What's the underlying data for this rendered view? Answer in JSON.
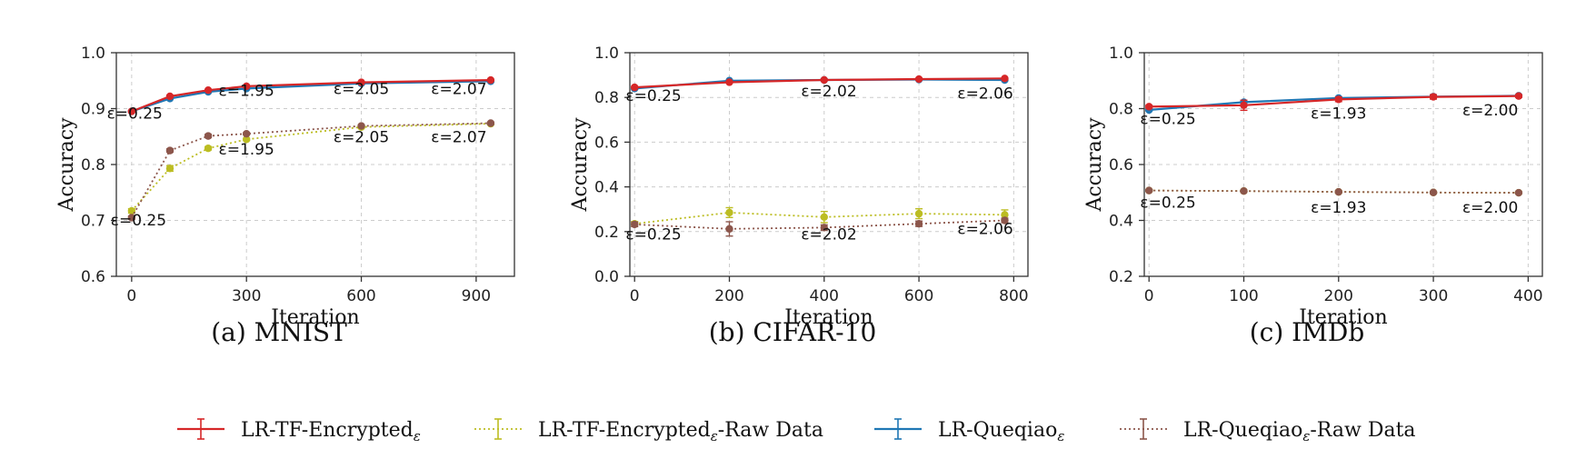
{
  "legend": {
    "position": "bottom",
    "entries": [
      {
        "name": "LR-TF-Encrypted",
        "subscript": "ε",
        "suffix": "",
        "color": "#d62728",
        "dash": "solid"
      },
      {
        "name": "LR-TF-Encrypted",
        "subscript": "ε",
        "suffix": "-Raw Data",
        "color": "#bcbd22",
        "dash": "dotted"
      },
      {
        "name": "LR-Queqiao",
        "subscript": "ε",
        "suffix": "",
        "color": "#1f77b4",
        "dash": "solid"
      },
      {
        "name": "LR-Queqiao",
        "subscript": "ε",
        "suffix": "-Raw Data",
        "color": "#8c564b",
        "dash": "dotted"
      }
    ]
  },
  "chart_data": [
    {
      "type": "line",
      "caption": "(a) MNIST",
      "xlabel": "Iteration",
      "ylabel": "Accuracy",
      "xlim": [
        -40,
        1000
      ],
      "ylim": [
        0.6,
        1.0
      ],
      "xticks": [
        0,
        300,
        600,
        900
      ],
      "yticks": [
        0.6,
        0.7,
        0.8,
        0.9,
        1.0
      ],
      "ytick_labels": [
        "0.6",
        "0.7",
        "0.8",
        "0.9",
        "1.0"
      ],
      "grid": true,
      "series": [
        {
          "name": "LR-TF-Encrypted_ε",
          "color": "#d62728",
          "dash": "solid",
          "x": [
            0,
            100,
            200,
            300,
            600,
            938
          ],
          "y": [
            0.895,
            0.922,
            0.933,
            0.94,
            0.947,
            0.951
          ],
          "err": [
            0.001,
            0.002,
            0.001,
            0.001,
            0.001,
            0.001
          ]
        },
        {
          "name": "LR-TF-Encrypted_ε-Raw Data",
          "color": "#bcbd22",
          "dash": "dotted",
          "x": [
            0,
            100,
            200,
            300,
            600,
            938
          ],
          "y": [
            0.717,
            0.793,
            0.829,
            0.845,
            0.867,
            0.873
          ],
          "err": [
            0.004,
            0.005,
            0.003,
            0.002,
            0.002,
            0.002
          ]
        },
        {
          "name": "LR-Queqiao_ε",
          "color": "#1f77b4",
          "dash": "solid",
          "x": [
            0,
            100,
            200,
            300,
            600,
            938
          ],
          "y": [
            0.895,
            0.918,
            0.93,
            0.936,
            0.945,
            0.949
          ],
          "err": [
            0.001,
            0.001,
            0.001,
            0.001,
            0.001,
            0.001
          ]
        },
        {
          "name": "LR-Queqiao_ε-Raw Data",
          "color": "#8c564b",
          "dash": "dotted",
          "x": [
            0,
            100,
            200,
            300,
            600,
            938
          ],
          "y": [
            0.705,
            0.825,
            0.851,
            0.855,
            0.869,
            0.874
          ],
          "err": [
            0.003,
            0.003,
            0.003,
            0.002,
            0.002,
            0.002
          ]
        }
      ],
      "annotations": [
        {
          "text": "ε=0.25",
          "x": 8,
          "y": 0.882
        },
        {
          "text": "ε=1.95",
          "x": 300,
          "y": 0.923
        },
        {
          "text": "ε=2.05",
          "x": 600,
          "y": 0.926
        },
        {
          "text": "ε=2.07",
          "x": 855,
          "y": 0.926
        },
        {
          "text": "ε=0.25",
          "x": 18,
          "y": 0.691
        },
        {
          "text": "ε=1.95",
          "x": 300,
          "y": 0.818
        },
        {
          "text": "ε=2.05",
          "x": 600,
          "y": 0.84
        },
        {
          "text": "ε=2.07",
          "x": 855,
          "y": 0.84
        }
      ]
    },
    {
      "type": "line",
      "caption": "(b) CIFAR-10",
      "xlabel": "Iteration",
      "ylabel": "Accuracy",
      "xlim": [
        -10,
        830
      ],
      "ylim": [
        0.0,
        1.0
      ],
      "xticks": [
        0,
        200,
        400,
        600,
        800
      ],
      "yticks": [
        0.0,
        0.2,
        0.4,
        0.6,
        0.8,
        1.0
      ],
      "ytick_labels": [
        "0.0",
        "0.2",
        "0.4",
        "0.6",
        "0.8",
        "1.0"
      ],
      "grid": true,
      "series": [
        {
          "name": "LR-TF-Encrypted_ε",
          "color": "#d62728",
          "dash": "solid",
          "x": [
            0,
            200,
            400,
            600,
            781
          ],
          "y": [
            0.845,
            0.868,
            0.878,
            0.882,
            0.885
          ],
          "err": [
            0.003,
            0.003,
            0.003,
            0.003,
            0.003
          ]
        },
        {
          "name": "LR-TF-Encrypted_ε-Raw Data",
          "color": "#bcbd22",
          "dash": "dotted",
          "x": [
            0,
            200,
            400,
            600,
            781
          ],
          "y": [
            0.235,
            0.285,
            0.265,
            0.28,
            0.275
          ],
          "err": [
            0.01,
            0.022,
            0.025,
            0.022,
            0.022
          ]
        },
        {
          "name": "LR-Queqiao_ε",
          "color": "#1f77b4",
          "dash": "solid",
          "x": [
            0,
            200,
            400,
            600,
            781
          ],
          "y": [
            0.84,
            0.875,
            0.878,
            0.88,
            0.878
          ],
          "err": [
            0.003,
            0.003,
            0.003,
            0.003,
            0.003
          ]
        },
        {
          "name": "LR-Queqiao_ε-Raw Data",
          "color": "#8c564b",
          "dash": "dotted",
          "x": [
            0,
            200,
            400,
            600,
            781
          ],
          "y": [
            0.232,
            0.212,
            0.218,
            0.235,
            0.25
          ],
          "err": [
            0.01,
            0.032,
            0.012,
            0.012,
            0.01
          ]
        }
      ],
      "annotations": [
        {
          "text": "ε=0.25",
          "x": 40,
          "y": 0.785
        },
        {
          "text": "ε=2.02",
          "x": 410,
          "y": 0.805
        },
        {
          "text": "ε=2.06",
          "x": 740,
          "y": 0.795
        },
        {
          "text": "ε=0.25",
          "x": 40,
          "y": 0.165
        },
        {
          "text": "ε=2.02",
          "x": 410,
          "y": 0.165
        },
        {
          "text": "ε=2.06",
          "x": 740,
          "y": 0.19
        }
      ]
    },
    {
      "type": "line",
      "caption": "(c) IMDb",
      "xlabel": "Iteration",
      "ylabel": "Accuracy",
      "xlim": [
        -5,
        415
      ],
      "ylim": [
        0.2,
        1.0
      ],
      "xticks": [
        0,
        100,
        200,
        300,
        400
      ],
      "yticks": [
        0.2,
        0.4,
        0.6,
        0.8,
        1.0
      ],
      "ytick_labels": [
        "0.2",
        "0.4",
        "0.6",
        "0.8",
        "1.0"
      ],
      "grid": true,
      "series": [
        {
          "name": "LR-TF-Encrypted_ε",
          "color": "#d62728",
          "dash": "solid",
          "x": [
            0,
            100,
            200,
            300,
            390
          ],
          "y": [
            0.807,
            0.812,
            0.833,
            0.842,
            0.845
          ],
          "err": [
            0.005,
            0.018,
            0.008,
            0.008,
            0.005
          ]
        },
        {
          "name": "LR-TF-Encrypted_ε-Raw Data",
          "color": "#bcbd22",
          "dash": "dotted",
          "x": [
            0,
            100,
            200,
            300,
            390
          ],
          "y": [
            0.507,
            0.505,
            0.502,
            0.5,
            0.499
          ],
          "err": [
            0.003,
            0.004,
            0.004,
            0.003,
            0.003
          ]
        },
        {
          "name": "LR-Queqiao_ε",
          "color": "#1f77b4",
          "dash": "solid",
          "x": [
            0,
            100,
            200,
            300,
            390
          ],
          "y": [
            0.795,
            0.823,
            0.838,
            0.843,
            0.846
          ],
          "err": [
            0.003,
            0.004,
            0.004,
            0.004,
            0.004
          ]
        },
        {
          "name": "LR-Queqiao_ε-Raw Data",
          "color": "#8c564b",
          "dash": "dotted",
          "x": [
            0,
            100,
            200,
            300,
            390
          ],
          "y": [
            0.507,
            0.505,
            0.502,
            0.5,
            0.499
          ],
          "err": [
            0.003,
            0.003,
            0.003,
            0.003,
            0.003
          ]
        }
      ],
      "annotations": [
        {
          "text": "ε=0.25",
          "x": 20,
          "y": 0.745
        },
        {
          "text": "ε=1.93",
          "x": 200,
          "y": 0.765
        },
        {
          "text": "ε=2.00",
          "x": 360,
          "y": 0.775
        },
        {
          "text": "ε=0.25",
          "x": 20,
          "y": 0.445
        },
        {
          "text": "ε=1.93",
          "x": 200,
          "y": 0.428
        },
        {
          "text": "ε=2.00",
          "x": 360,
          "y": 0.428
        }
      ]
    }
  ]
}
